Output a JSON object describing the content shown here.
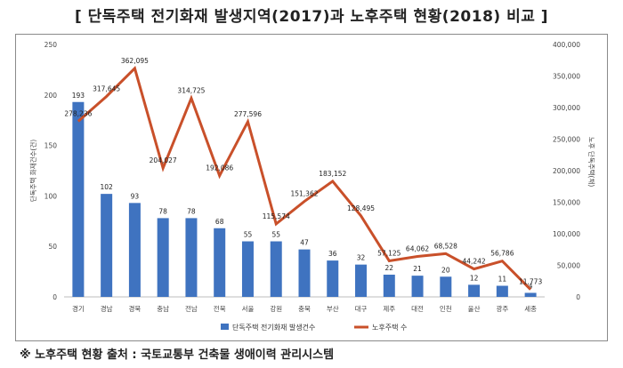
{
  "title": "[ 단독주택 전기화재 발생지역(2017)과 노후주택 현황(2018) 비교 ]",
  "footnote": "※ 노후주택 현황 출처 : 국토교통부 건축물 생애이력 관리시스템",
  "chart_data": {
    "type": "bar",
    "categories": [
      "경기",
      "경남",
      "경북",
      "충남",
      "전남",
      "전북",
      "서울",
      "강원",
      "충북",
      "부산",
      "대구",
      "제주",
      "대전",
      "인천",
      "울산",
      "광주",
      "세종"
    ],
    "series": [
      {
        "name": "단독주택 전기화재 발생건수",
        "type": "bar",
        "axis": "left",
        "color": "#3f73c0",
        "values": [
          193,
          102,
          93,
          78,
          78,
          68,
          55,
          55,
          47,
          36,
          32,
          22,
          21,
          20,
          12,
          11,
          4
        ],
        "labels": [
          "193",
          "102",
          "93",
          "78",
          "78",
          "68",
          "55",
          "55",
          "47",
          "36",
          "32",
          "22",
          "21",
          "20",
          "12",
          "11",
          "4"
        ]
      },
      {
        "name": "노후주택 수",
        "type": "line",
        "axis": "right",
        "color": "#c9502a",
        "values": [
          278236,
          317645,
          362095,
          204027,
          314725,
          192086,
          277596,
          115574,
          151362,
          183152,
          128495,
          57125,
          64062,
          68528,
          44242,
          56786,
          11773
        ],
        "labels": [
          "278,236",
          "317,645",
          "362,095",
          "204,027",
          "314,725",
          "192,086",
          "277,596",
          "115,574",
          "151,362",
          "183,152",
          "128,495",
          "57,125",
          "64,062",
          "68,528",
          "44,242",
          "56,786",
          "11,773"
        ]
      }
    ],
    "ylabel": "단독주택 화재건수(건)",
    "y2label": "노후 단독주택(채)",
    "ylim": [
      0,
      250
    ],
    "y_ticks": [
      "0",
      "50",
      "100",
      "150",
      "200",
      "250"
    ],
    "y2lim": [
      0,
      400000
    ],
    "y2_ticks": [
      "0",
      "50,000",
      "100,000",
      "150,000",
      "200,000",
      "250,000",
      "300,000",
      "350,000",
      "400,000"
    ],
    "legend_position": "bottom",
    "grid": false
  }
}
